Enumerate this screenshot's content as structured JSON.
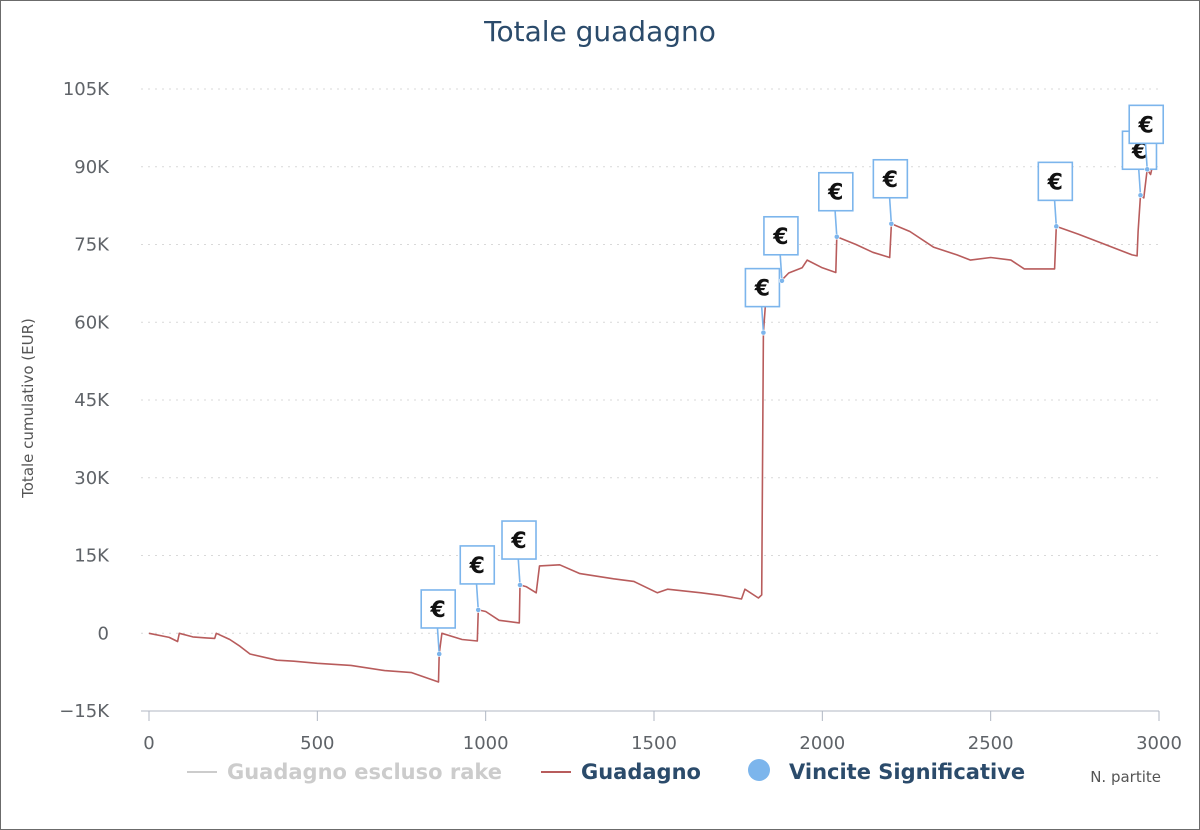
{
  "chart_data": {
    "type": "line",
    "title": "Totale guadagno",
    "xlabel": "N. partite",
    "ylabel": "Totale cumulativo (EUR)",
    "xlim": [
      0,
      3000
    ],
    "ylim": [
      -15000,
      105000
    ],
    "x_ticks": [
      0,
      500,
      1000,
      1500,
      2000,
      2500,
      3000
    ],
    "y_ticks": [
      -15000,
      0,
      15000,
      30000,
      45000,
      60000,
      75000,
      90000,
      105000
    ],
    "y_tick_labels": [
      "−15K",
      "0",
      "15K",
      "30K",
      "45K",
      "60K",
      "75K",
      "90K",
      "105K"
    ],
    "grid": true,
    "legend_placement": "bottom",
    "legend": [
      {
        "label": "Guadagno escluso rake",
        "marker": "line",
        "color": "#cccccc",
        "hidden": true
      },
      {
        "label": "Guadagno",
        "marker": "line",
        "color": "#b85c5c",
        "hidden": false
      },
      {
        "label": "Vincite Significative",
        "marker": "circle",
        "color": "#7cb5ec",
        "hidden": false
      }
    ],
    "series": [
      {
        "name": "Guadagno",
        "color": "#b85c5c",
        "points": [
          [
            0,
            0
          ],
          [
            60,
            -800
          ],
          [
            85,
            -1600
          ],
          [
            90,
            0
          ],
          [
            130,
            -700
          ],
          [
            170,
            -900
          ],
          [
            195,
            -1000
          ],
          [
            200,
            0
          ],
          [
            240,
            -1200
          ],
          [
            270,
            -2500
          ],
          [
            300,
            -4000
          ],
          [
            380,
            -5200
          ],
          [
            430,
            -5400
          ],
          [
            500,
            -5800
          ],
          [
            600,
            -6200
          ],
          [
            700,
            -7200
          ],
          [
            780,
            -7600
          ],
          [
            860,
            -9400
          ],
          [
            862,
            -4000
          ],
          [
            870,
            0
          ],
          [
            930,
            -1200
          ],
          [
            975,
            -1500
          ],
          [
            978,
            4500
          ],
          [
            1000,
            4200
          ],
          [
            1040,
            2500
          ],
          [
            1100,
            2000
          ],
          [
            1102,
            9300
          ],
          [
            1120,
            9000
          ],
          [
            1150,
            7800
          ],
          [
            1160,
            13000
          ],
          [
            1220,
            13200
          ],
          [
            1280,
            11500
          ],
          [
            1380,
            10500
          ],
          [
            1440,
            10000
          ],
          [
            1510,
            7800
          ],
          [
            1540,
            8500
          ],
          [
            1640,
            7800
          ],
          [
            1700,
            7300
          ],
          [
            1760,
            6600
          ],
          [
            1770,
            8500
          ],
          [
            1810,
            6800
          ],
          [
            1820,
            7400
          ],
          [
            1825,
            58000
          ],
          [
            1835,
            67000
          ],
          [
            1855,
            68500
          ],
          [
            1870,
            67500
          ],
          [
            1900,
            69500
          ],
          [
            1940,
            70500
          ],
          [
            1955,
            72000
          ],
          [
            2000,
            70500
          ],
          [
            2040,
            69600
          ],
          [
            2043,
            76500
          ],
          [
            2100,
            75000
          ],
          [
            2150,
            73500
          ],
          [
            2200,
            72500
          ],
          [
            2205,
            79000
          ],
          [
            2260,
            77500
          ],
          [
            2330,
            74500
          ],
          [
            2400,
            73000
          ],
          [
            2440,
            72000
          ],
          [
            2500,
            72500
          ],
          [
            2560,
            72000
          ],
          [
            2600,
            70300
          ],
          [
            2690,
            70300
          ],
          [
            2695,
            78500
          ],
          [
            2760,
            77000
          ],
          [
            2820,
            75500
          ],
          [
            2920,
            73000
          ],
          [
            2935,
            72800
          ],
          [
            2938,
            77500
          ],
          [
            2945,
            84500
          ],
          [
            2955,
            84000
          ],
          [
            2965,
            89500
          ],
          [
            2975,
            88500
          ],
          [
            2985,
            91500
          ]
        ]
      }
    ],
    "flags": [
      {
        "label": "€",
        "x": 862,
        "y": -4000
      },
      {
        "label": "€",
        "x": 978,
        "y": 4500
      },
      {
        "label": "€",
        "x": 1102,
        "y": 9300
      },
      {
        "label": "€",
        "x": 1825,
        "y": 58000
      },
      {
        "label": "€",
        "x": 1880,
        "y": 68000
      },
      {
        "label": "€",
        "x": 2043,
        "y": 76500
      },
      {
        "label": "€",
        "x": 2205,
        "y": 79000
      },
      {
        "label": "€",
        "x": 2695,
        "y": 78500
      },
      {
        "label": "€",
        "x": 2945,
        "y": 84500
      },
      {
        "label": "€",
        "x": 2965,
        "y": 89500
      }
    ]
  }
}
